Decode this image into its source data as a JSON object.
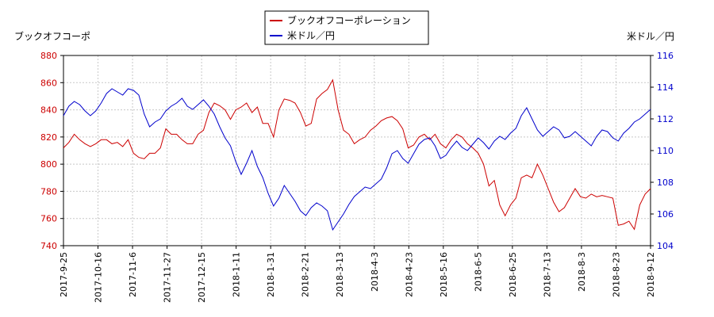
{
  "chart_data": {
    "type": "line",
    "title": "",
    "left_axis_label": "ブックオフコーポ",
    "right_axis_label": "米ドル／円",
    "left_ylim": [
      740,
      880
    ],
    "left_yticks": [
      "740",
      "760",
      "780",
      "800",
      "820",
      "840",
      "860",
      "880"
    ],
    "right_ylim": [
      104,
      116
    ],
    "right_yticks": [
      "104",
      "106",
      "108",
      "110",
      "112",
      "114",
      "116"
    ],
    "x_tick_labels": [
      "2017-9-25",
      "2017-10-16",
      "2017-11-6",
      "2017-11-27",
      "2017-12-15",
      "2018-1-11",
      "2018-1-31",
      "2018-2-21",
      "2018-3-13",
      "2018-4-3",
      "2018-4-23",
      "2018-5-16",
      "2018-6-5",
      "2018-6-25",
      "2018-7-13",
      "2018-8-3",
      "2018-8-23",
      "2018-9-12"
    ],
    "grid": true,
    "legend_position": "top-center",
    "series": [
      {
        "name": "ブックオフコーポレーション",
        "color": "#cc0000",
        "axis": "left",
        "values": [
          812,
          816,
          822,
          818,
          815,
          813,
          815,
          818,
          818,
          815,
          816,
          813,
          818,
          808,
          805,
          804,
          808,
          808,
          812,
          826,
          822,
          822,
          818,
          815,
          815,
          822,
          825,
          838,
          845,
          843,
          840,
          833,
          840,
          842,
          845,
          838,
          842,
          830,
          830,
          820,
          840,
          848,
          847,
          845,
          838,
          828,
          830,
          848,
          852,
          855,
          862,
          840,
          825,
          822,
          815,
          818,
          820,
          825,
          828,
          832,
          834,
          835,
          832,
          826,
          812,
          814,
          820,
          822,
          818,
          822,
          815,
          812,
          818,
          822,
          820,
          815,
          812,
          808,
          800,
          784,
          788,
          770,
          762,
          770,
          775,
          790,
          792,
          790,
          800,
          792,
          782,
          772,
          765,
          768,
          775,
          782,
          776,
          775,
          778,
          776,
          777,
          776,
          775,
          755,
          756,
          758,
          752,
          770,
          778,
          782
        ]
      },
      {
        "name": "米ドル／円",
        "color": "#0000cc",
        "axis": "right",
        "values": [
          112.2,
          112.8,
          113.1,
          112.9,
          112.5,
          112.2,
          112.5,
          113.0,
          113.6,
          113.9,
          113.7,
          113.5,
          113.9,
          113.8,
          113.5,
          112.3,
          111.5,
          111.8,
          112.0,
          112.5,
          112.8,
          113.0,
          113.3,
          112.8,
          112.6,
          112.9,
          113.2,
          112.8,
          112.3,
          111.5,
          110.8,
          110.3,
          109.3,
          108.5,
          109.2,
          110.0,
          109.0,
          108.3,
          107.3,
          106.5,
          107.0,
          107.8,
          107.3,
          106.8,
          106.2,
          105.9,
          106.4,
          106.7,
          106.5,
          106.2,
          105.0,
          105.5,
          106.0,
          106.6,
          107.1,
          107.4,
          107.7,
          107.6,
          107.9,
          108.2,
          108.9,
          109.8,
          110.0,
          109.5,
          109.2,
          109.8,
          110.4,
          110.7,
          110.8,
          110.3,
          109.5,
          109.7,
          110.2,
          110.6,
          110.2,
          110.0,
          110.4,
          110.8,
          110.5,
          110.1,
          110.6,
          110.9,
          110.7,
          111.1,
          111.4,
          112.2,
          112.7,
          112.0,
          111.3,
          110.9,
          111.2,
          111.5,
          111.3,
          110.8,
          110.9,
          111.2,
          110.9,
          110.6,
          110.3,
          110.9,
          111.3,
          111.2,
          110.8,
          110.6,
          111.1,
          111.4,
          111.8,
          112.0,
          112.3,
          112.6
        ]
      }
    ]
  }
}
